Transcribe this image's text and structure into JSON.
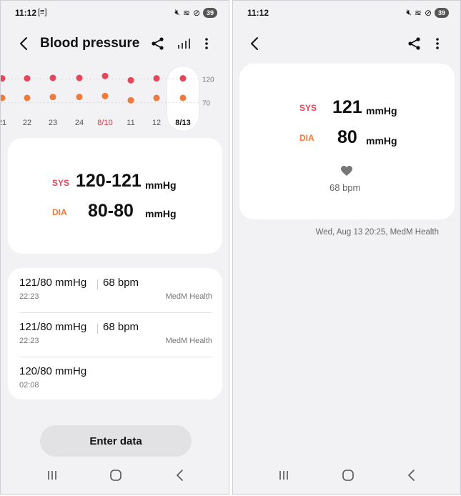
{
  "left": {
    "status": {
      "time": "11:12",
      "notif_icon": "[≡]",
      "battery": "39"
    },
    "title": "Blood pressure",
    "chart_data": {
      "type": "scatter",
      "categories": [
        "21",
        "22",
        "23",
        "24",
        "8/10",
        "11",
        "12",
        "8/13"
      ],
      "highlight_category": "8/13",
      "red_category": "8/10",
      "series": [
        {
          "name": "SYS",
          "color": "#e8455a",
          "values": [
            121,
            121,
            122,
            122,
            126,
            117,
            121,
            121
          ]
        },
        {
          "name": "DIA",
          "color": "#ee7a3c",
          "values": [
            80,
            80,
            82,
            82,
            84,
            75,
            80,
            80
          ]
        }
      ],
      "y_ticks": [
        "120",
        "70"
      ],
      "ylim": [
        50,
        140
      ]
    },
    "range_card": {
      "sys_label": "SYS",
      "sys_value": "120-121",
      "dia_label": "DIA",
      "dia_value": "80-80",
      "unit": "mmHg"
    },
    "readings": [
      {
        "value": "121/80 mmHg",
        "bpm": "68 bpm",
        "time": "22:23",
        "source": "MedM Health"
      },
      {
        "value": "121/80 mmHg",
        "bpm": "68 bpm",
        "time": "22:23",
        "source": "MedM Health"
      },
      {
        "value": "120/80 mmHg",
        "bpm": "",
        "time": "02:08",
        "source": ""
      }
    ],
    "enter_button": "Enter data"
  },
  "right": {
    "status": {
      "time": "11:12",
      "battery": "39"
    },
    "detail": {
      "sys_label": "SYS",
      "sys_value": "121",
      "dia_label": "DIA",
      "dia_value": "80",
      "unit": "mmHg",
      "bpm": "68 bpm"
    },
    "meta": "Wed, Aug 13 20:25, MedM Health"
  },
  "colors": {
    "sys": "#e8455a",
    "dia": "#ee7a3c",
    "date_red": "#d03a4a"
  }
}
